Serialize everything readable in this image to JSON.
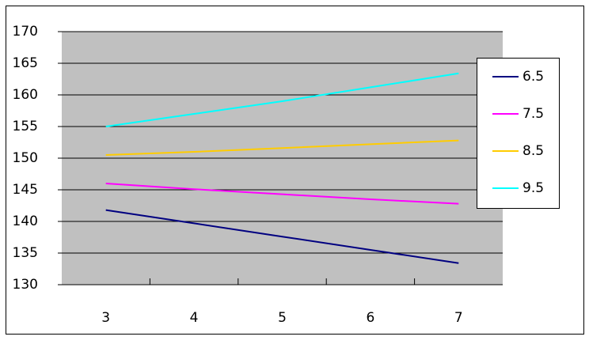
{
  "chart_data": {
    "type": "line",
    "categories": [
      "3",
      "4",
      "5",
      "6",
      "7"
    ],
    "series": [
      {
        "name": "6.5",
        "color": "#000080",
        "values": [
          141.8,
          139.7,
          137.6,
          135.5,
          133.4
        ]
      },
      {
        "name": "7.5",
        "color": "#ff00ff",
        "values": [
          146.0,
          145.1,
          144.3,
          143.5,
          142.8
        ]
      },
      {
        "name": "8.5",
        "color": "#ffcc00",
        "values": [
          150.5,
          151.0,
          151.6,
          152.2,
          152.8
        ]
      },
      {
        "name": "9.5",
        "color": "#00ffff",
        "values": [
          155.0,
          157.0,
          159.0,
          161.2,
          163.4
        ]
      }
    ],
    "ylim": [
      130,
      170
    ],
    "yticks": [
      130,
      135,
      140,
      145,
      150,
      155,
      160,
      165,
      170
    ],
    "grid": true,
    "legend": "right"
  }
}
